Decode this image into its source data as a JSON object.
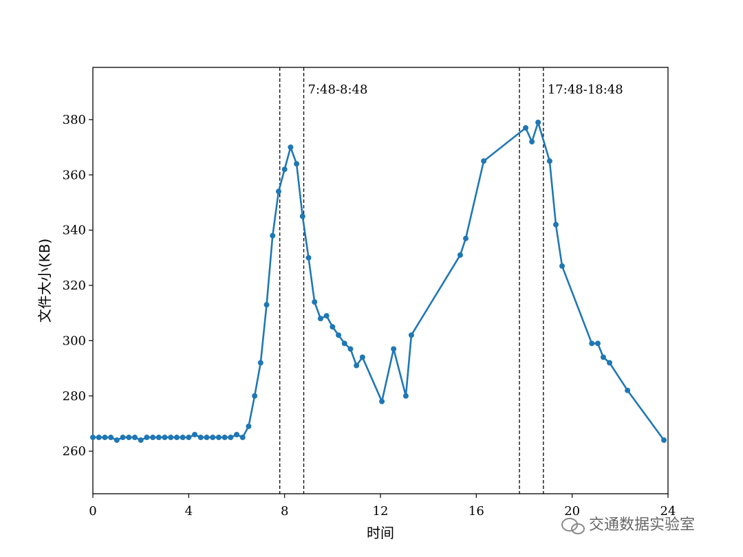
{
  "chart_data": {
    "type": "line",
    "xlabel": "时间",
    "ylabel": "文件大小(KB)",
    "x": [
      0,
      0.25,
      0.5,
      0.75,
      1.0,
      1.25,
      1.5,
      1.75,
      2.0,
      2.25,
      2.5,
      2.75,
      3.0,
      3.25,
      3.5,
      3.75,
      4.0,
      4.25,
      4.5,
      4.75,
      5.0,
      5.25,
      5.5,
      5.75,
      6.0,
      6.25,
      6.5,
      6.75,
      7.0,
      7.25,
      7.5,
      7.75,
      8.0,
      8.25,
      8.5,
      8.75,
      9.0,
      9.25,
      9.5,
      9.75,
      10.0,
      10.25,
      10.5,
      10.75,
      11.0,
      11.25,
      12.06,
      12.55,
      13.06,
      13.29,
      15.33,
      15.56,
      16.31,
      18.06,
      18.32,
      18.58,
      19.06,
      19.32,
      19.58,
      20.82,
      21.07,
      21.3,
      21.56,
      22.31,
      23.83
    ],
    "values": [
      265,
      265,
      265,
      265,
      264,
      265,
      265,
      265,
      264,
      265,
      265,
      265,
      265,
      265,
      265,
      265,
      265,
      266,
      265,
      265,
      265,
      265,
      265,
      265,
      266,
      265,
      269,
      280,
      292,
      313,
      338,
      354,
      362,
      370,
      364,
      345,
      330,
      314,
      308,
      309,
      305,
      302,
      299,
      297,
      291,
      294,
      278,
      297,
      280,
      302,
      331,
      337,
      365,
      377,
      372,
      379,
      365,
      342,
      327,
      299,
      299,
      294,
      292,
      282,
      264
    ],
    "color": "#1f77b4",
    "xlim": [
      0,
      24
    ],
    "xticks": [
      0,
      4,
      8,
      12,
      16,
      20,
      24
    ],
    "ylim": [
      244.6,
      398.9
    ],
    "yticks": [
      260,
      280,
      300,
      320,
      340,
      360,
      380
    ],
    "vlines": [
      7.8,
      8.8,
      17.8,
      18.8
    ],
    "annotations": [
      "7:48-8:48",
      "17:48-18:48"
    ],
    "watermark": "交通数据实验室"
  }
}
